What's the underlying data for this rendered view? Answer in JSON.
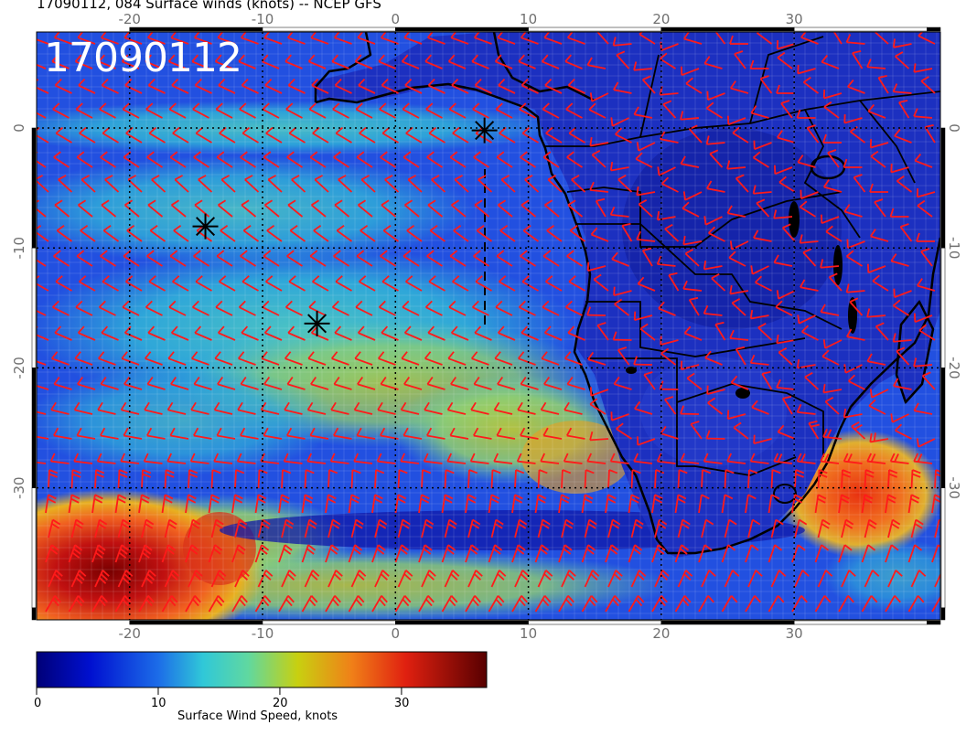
{
  "header": {
    "title": "17090112, 084 Surface winds (knots) -- NCEP GFS",
    "stamp": "17090112"
  },
  "map": {
    "lon_range": [
      -27,
      41
    ],
    "lat_range": [
      -41,
      8
    ],
    "lon_ticks": [
      "-20",
      "-10",
      "0",
      "10",
      "20",
      "30"
    ],
    "lat_ticks": [
      "0",
      "-10",
      "-20",
      "-30"
    ],
    "markers": [
      {
        "name": "storm-marker-1",
        "lon": 6.7,
        "lat": -0.2
      },
      {
        "name": "storm-marker-2",
        "lon": -14.3,
        "lat": -8.2
      },
      {
        "name": "storm-marker-3",
        "lon": -5.9,
        "lat": -16.3
      }
    ],
    "colors": {
      "calm": "#1428c8",
      "moderate": "#30b8d8",
      "fresh": "#c8d020",
      "strong": "#e87020",
      "gale": "#c01010",
      "barb": "#ff1a1a",
      "coast": "#000000"
    }
  },
  "colorbar": {
    "ticks": [
      "0",
      "10",
      "20",
      "30"
    ],
    "title": "Surface Wind Speed, knots",
    "range": [
      0,
      37
    ]
  }
}
